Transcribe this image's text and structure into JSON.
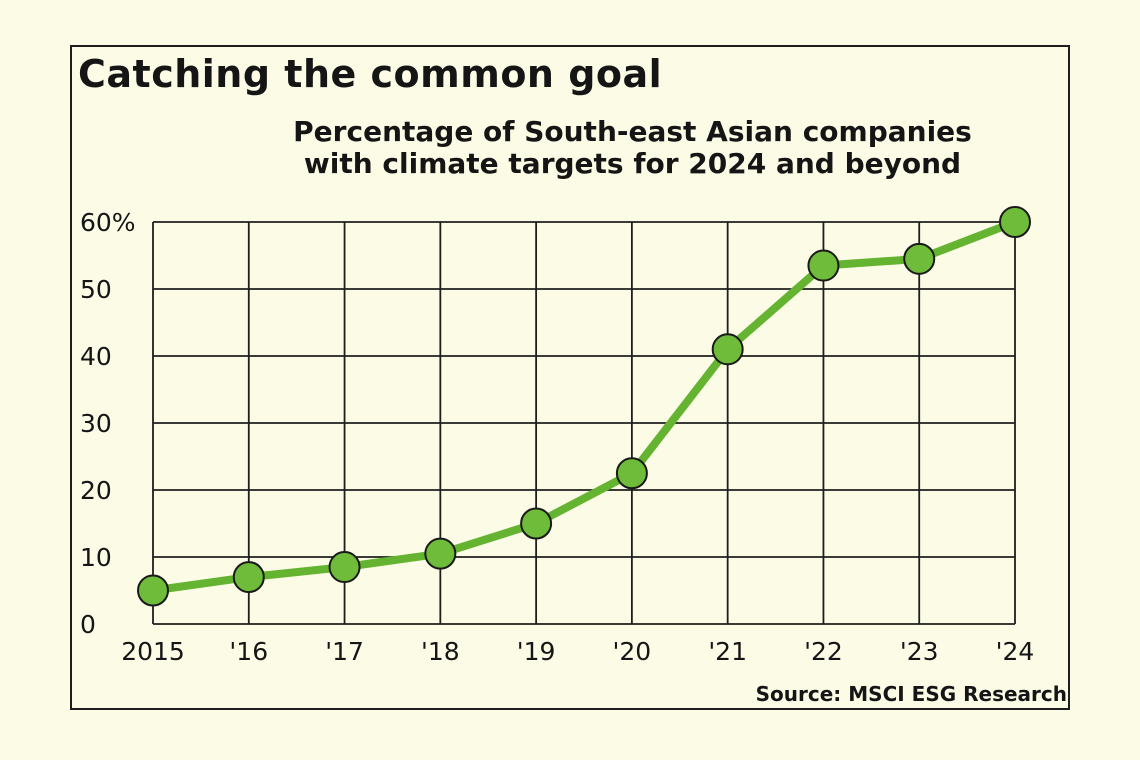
{
  "chart_data": {
    "type": "line",
    "title": "Catching the common goal",
    "subtitle": [
      "Percentage of South-east Asian companies",
      "with climate targets for 2024 and beyond"
    ],
    "source": "Source: MSCI ESG Research",
    "categories": [
      "2015",
      "'16",
      "'17",
      "'18",
      "'19",
      "'20",
      "'21",
      "'22",
      "'23",
      "'24"
    ],
    "series": [
      {
        "values": [
          5,
          7,
          8.5,
          10.5,
          15,
          22.5,
          41,
          53.5,
          54.5,
          60
        ]
      }
    ],
    "y_ticks": [
      0,
      10,
      20,
      30,
      40,
      50,
      60
    ],
    "y_tick_labels": [
      "0",
      "10",
      "20",
      "30",
      "40",
      "50",
      "60%"
    ],
    "ylim": [
      0,
      60
    ],
    "grid": true,
    "colors": {
      "line": "#64b431",
      "marker": "#6fbc3a",
      "outline": "#1a1a1a",
      "grid": "#1e1e1e"
    }
  }
}
